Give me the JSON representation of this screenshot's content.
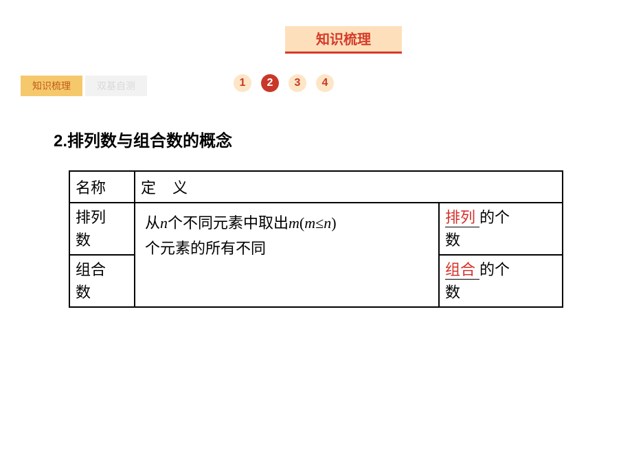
{
  "banner": {
    "title": "知识梳理"
  },
  "side_tabs": [
    {
      "label": "知识梳理",
      "active": true
    },
    {
      "label": "双基自测",
      "active": false
    }
  ],
  "num_tabs": [
    "1",
    "2",
    "3",
    "4"
  ],
  "num_active_index": 1,
  "section": {
    "number": "2",
    "dot": ".",
    "title": "排列数与组合数的概念"
  },
  "table": {
    "header": {
      "name": "名称",
      "def": "定义"
    },
    "row1_name_l1": "排列",
    "row1_name_l2": "数",
    "row2_name_l1": "组合",
    "row2_name_l2": "数",
    "def_pre": "从",
    "def_n": "n",
    "def_mid1": "个不同元素中取出",
    "def_m1": "m",
    "def_paren_open": "(",
    "def_m2": "m",
    "def_le": "≤",
    "def_n2": "n",
    "def_paren_close": ")",
    "def_line2": "个元素的所有不同",
    "row1_key": "排列",
    "row1_suffix": "的个",
    "row1_l2": "数",
    "row2_key": "组合",
    "row2_suffix": "的个",
    "row2_l2": "数"
  }
}
